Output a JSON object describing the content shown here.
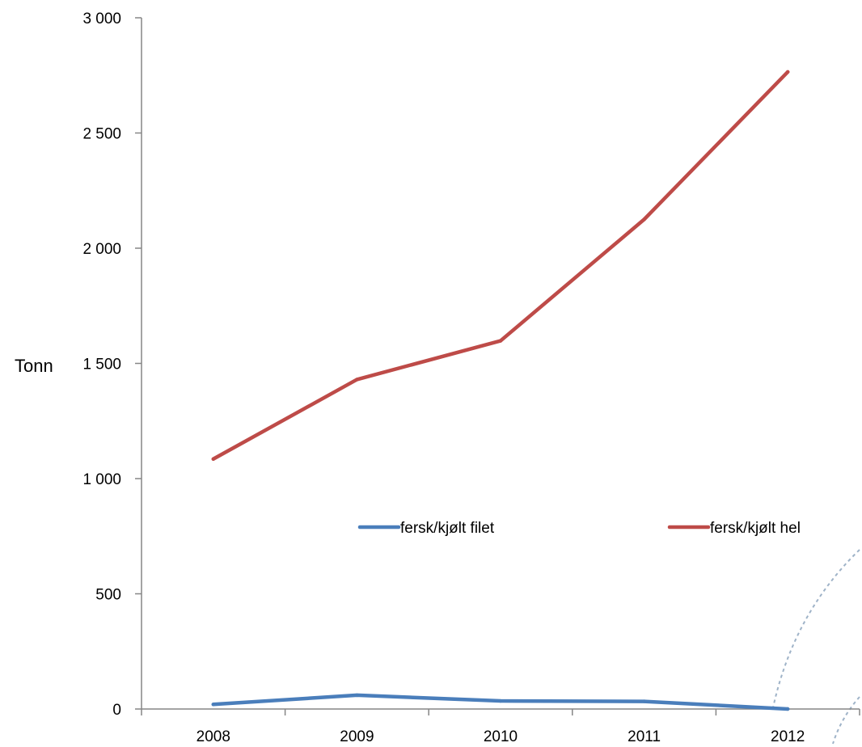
{
  "chart_data": {
    "type": "line",
    "title": "",
    "xlabel": "",
    "ylabel": "Tonn",
    "x": [
      "2008",
      "2009",
      "2010",
      "2011",
      "2012"
    ],
    "ylim": [
      0,
      3000
    ],
    "yticks": [
      0,
      500,
      1000,
      1500,
      2000,
      2500,
      3000
    ],
    "ytick_labels": [
      "0",
      "500",
      "1 000",
      "1 500",
      "2 000",
      "2 500",
      "3 000"
    ],
    "grid": false,
    "legend_position": "center-right",
    "series": [
      {
        "name": "fersk/kjølt filet",
        "color": "#4a7ebb",
        "values": [
          20,
          60,
          35,
          33,
          0
        ]
      },
      {
        "name": "fersk/kjølt hel",
        "color": "#be4b48",
        "values": [
          1085,
          1430,
          1598,
          2125,
          2765
        ]
      }
    ]
  }
}
